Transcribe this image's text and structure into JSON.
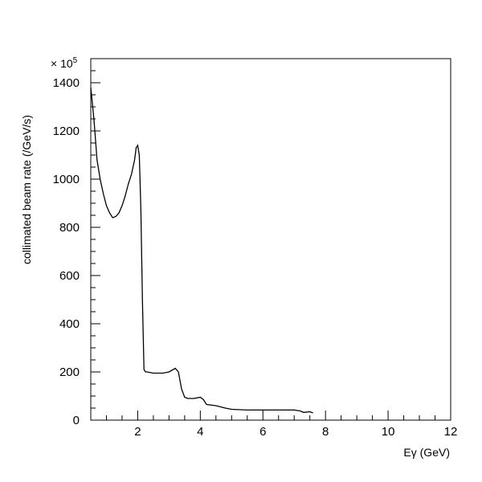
{
  "chart_data": {
    "type": "line",
    "xlabel": "Eγ (GeV)",
    "ylabel": "collimated beam rate (/GeV/s)",
    "y_multiplier": "× 10",
    "y_multiplier_exp": "5",
    "xlim": [
      0.5,
      12
    ],
    "ylim": [
      0,
      1500
    ],
    "x_ticks": [
      2,
      4,
      6,
      8,
      10,
      12
    ],
    "x_tick_labels": [
      "2",
      "4",
      "6",
      "8",
      "10",
      "12"
    ],
    "y_ticks": [
      0,
      200,
      400,
      600,
      800,
      1000,
      1200,
      1400
    ],
    "y_tick_labels": [
      "0",
      "200",
      "400",
      "600",
      "800",
      "1000",
      "1200",
      "1400"
    ],
    "grid": false,
    "line_color": "#000000",
    "series": [
      {
        "x": [
          0.5,
          0.6,
          0.7,
          0.8,
          0.9,
          1.0,
          1.1,
          1.2,
          1.3,
          1.4,
          1.5,
          1.6,
          1.7,
          1.8,
          1.9,
          1.95,
          2.0,
          2.05,
          2.1,
          2.15,
          2.2,
          2.25,
          2.3,
          2.5,
          2.8,
          3.0,
          3.2,
          3.3,
          3.4,
          3.5,
          3.6,
          3.8,
          4.0,
          4.1,
          4.2,
          4.5,
          4.8,
          5.0,
          5.5,
          6.0,
          6.5,
          7.0,
          7.2,
          7.3,
          7.5,
          7.6
        ],
        "y": [
          1380,
          1250,
          1080,
          1000,
          940,
          890,
          860,
          840,
          845,
          860,
          890,
          930,
          980,
          1020,
          1080,
          1130,
          1140,
          1100,
          880,
          500,
          210,
          200,
          200,
          195,
          195,
          200,
          215,
          200,
          130,
          95,
          90,
          90,
          95,
          85,
          65,
          60,
          50,
          45,
          42,
          42,
          42,
          42,
          38,
          32,
          35,
          30
        ]
      }
    ]
  }
}
